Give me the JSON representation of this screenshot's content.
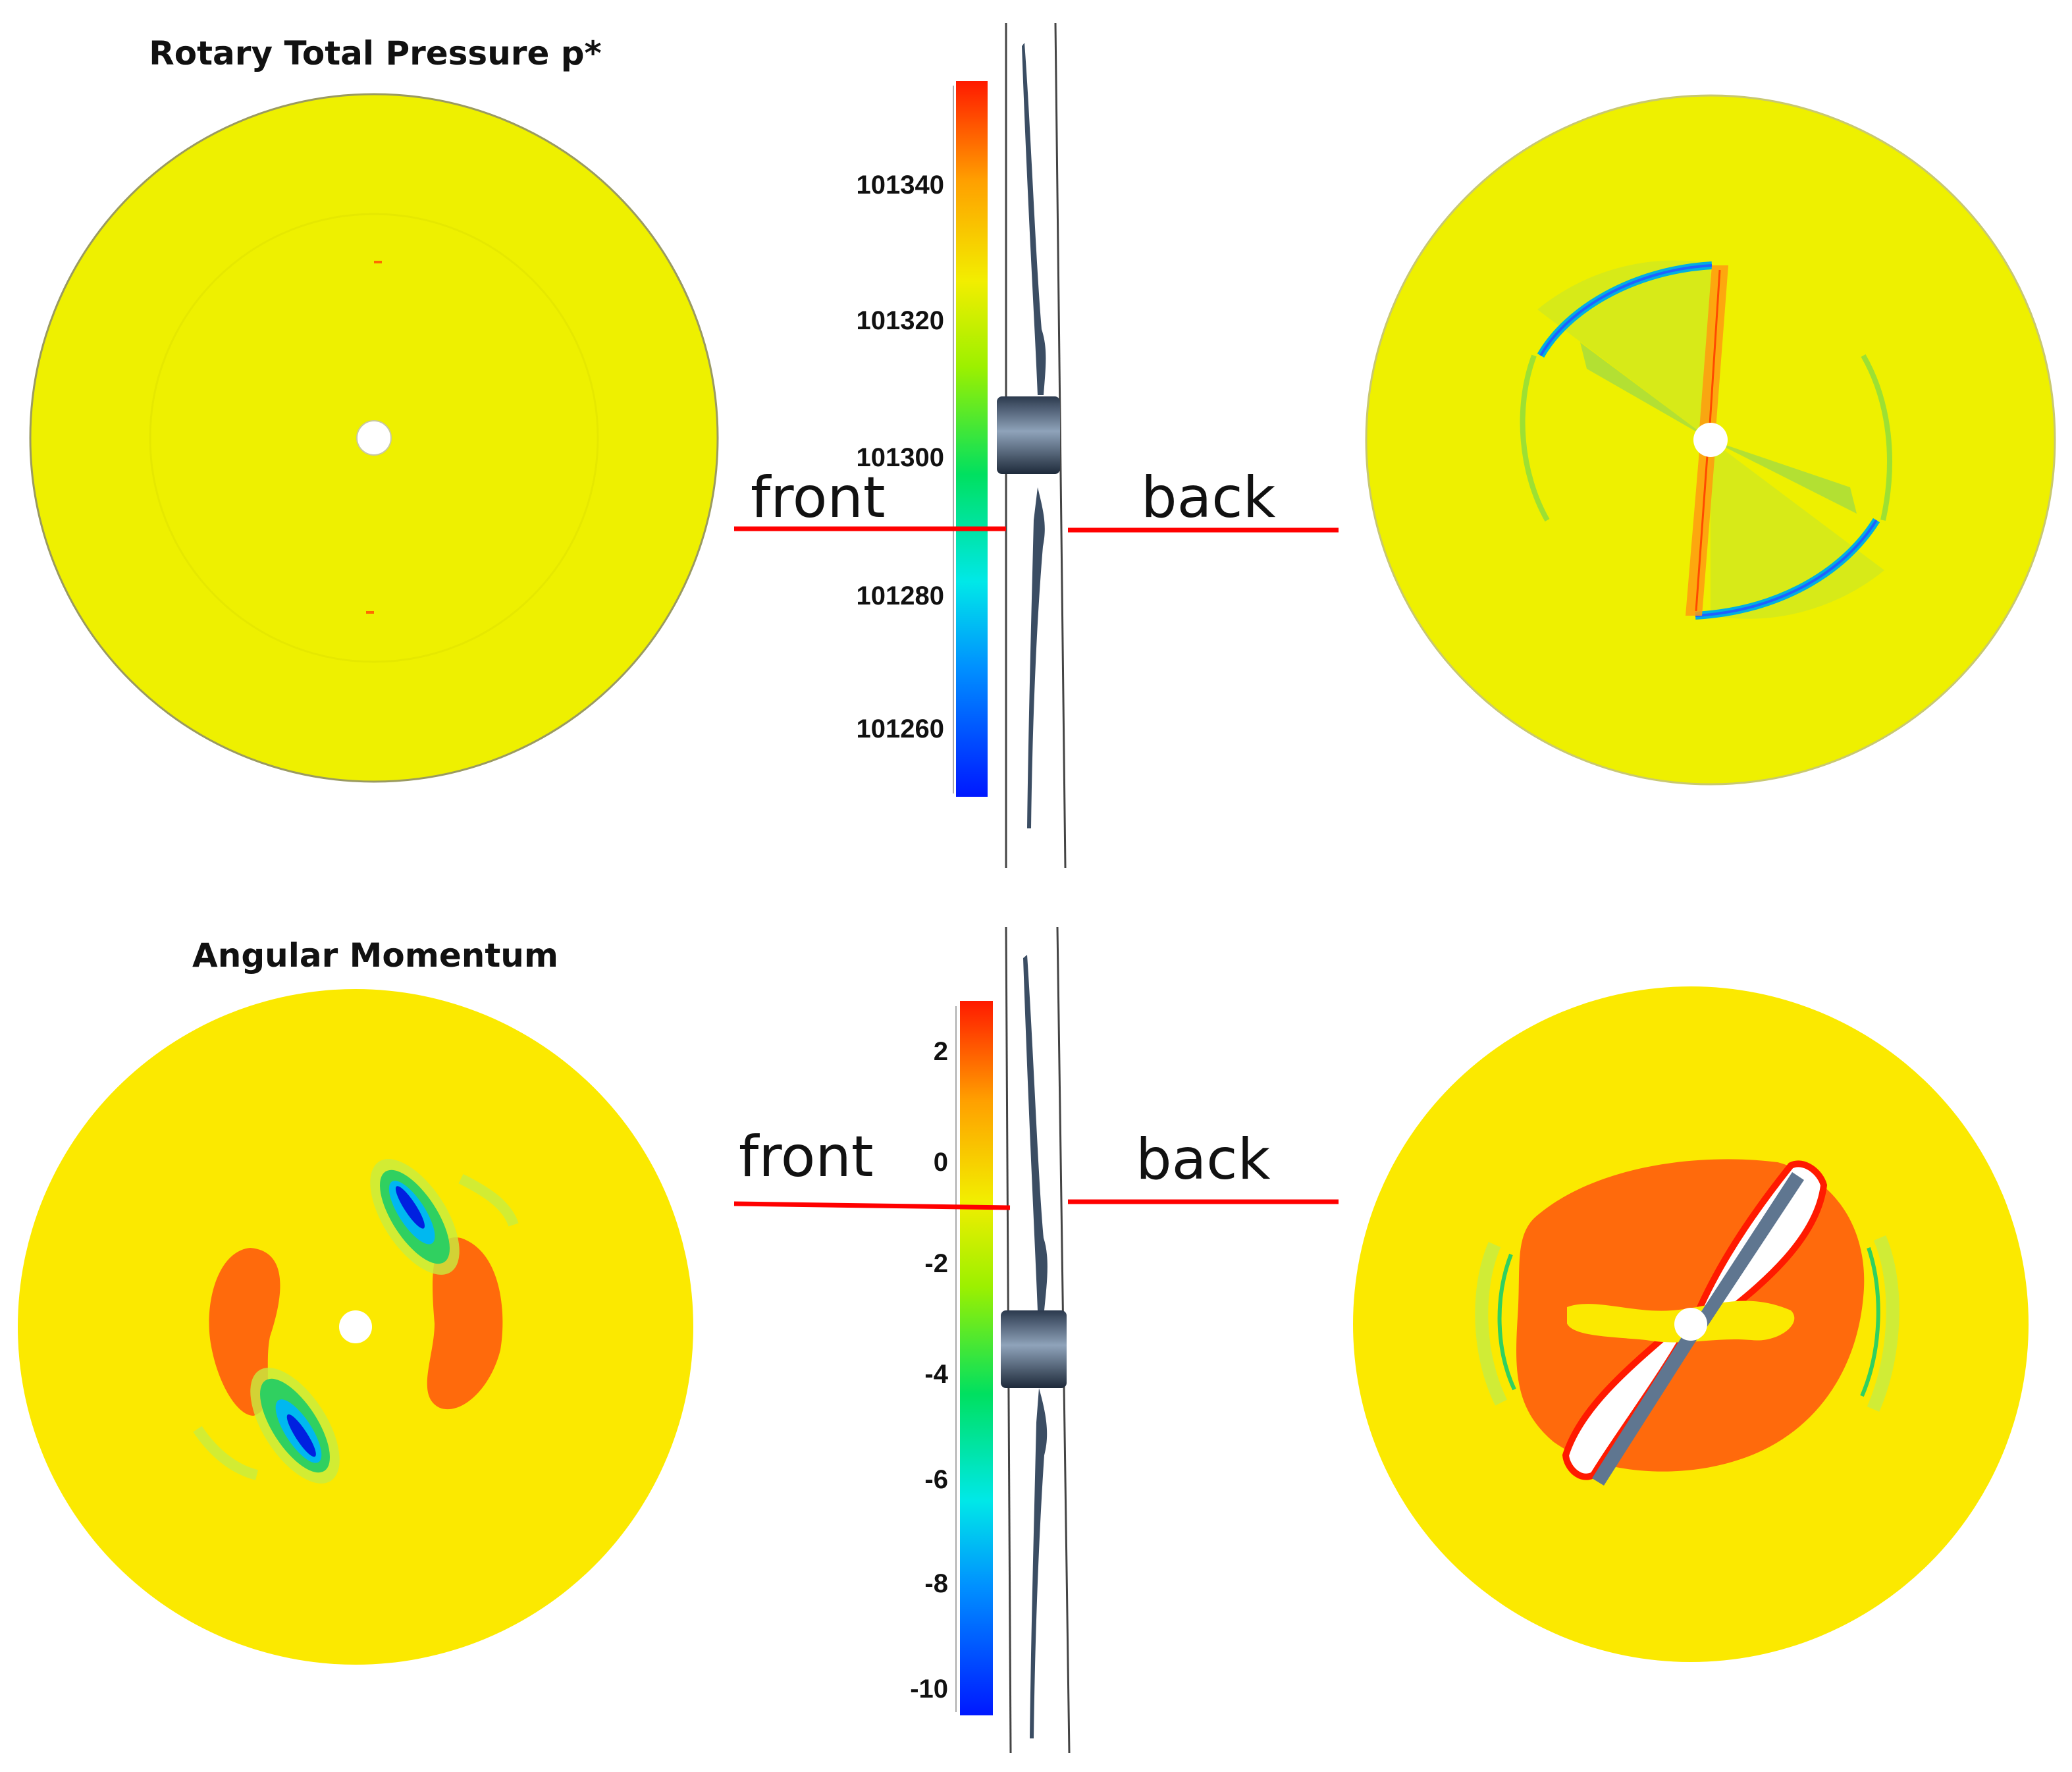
{
  "colors": {
    "field_yellow": "#f2ee00",
    "field_yellow_warm": "#fbe900",
    "momentum_orange": "#ff6a0c",
    "cut_line": "#ff0000",
    "blade": "#3b4d63",
    "colormap": [
      "#0018ff",
      "#00c8ff",
      "#00e870",
      "#9cf000",
      "#f2ee00",
      "#ffa000",
      "#ff0000"
    ]
  },
  "icons": [
    "propeller-side-view",
    "cut-plane-line",
    "colorbar-gradient"
  ],
  "panels": [
    {
      "title": "Rotary Total Pressure p*",
      "front_label": "front",
      "back_label": "back",
      "colorbar": {
        "ticks": [
          "101340",
          "101320",
          "101300",
          "101280",
          "101260"
        ]
      }
    },
    {
      "title": "Angular Momentum",
      "front_label": "front",
      "back_label": "back",
      "colorbar": {
        "ticks": [
          "2",
          "0",
          "-2",
          "-4",
          "-6",
          "-8",
          "-10"
        ]
      }
    }
  ]
}
